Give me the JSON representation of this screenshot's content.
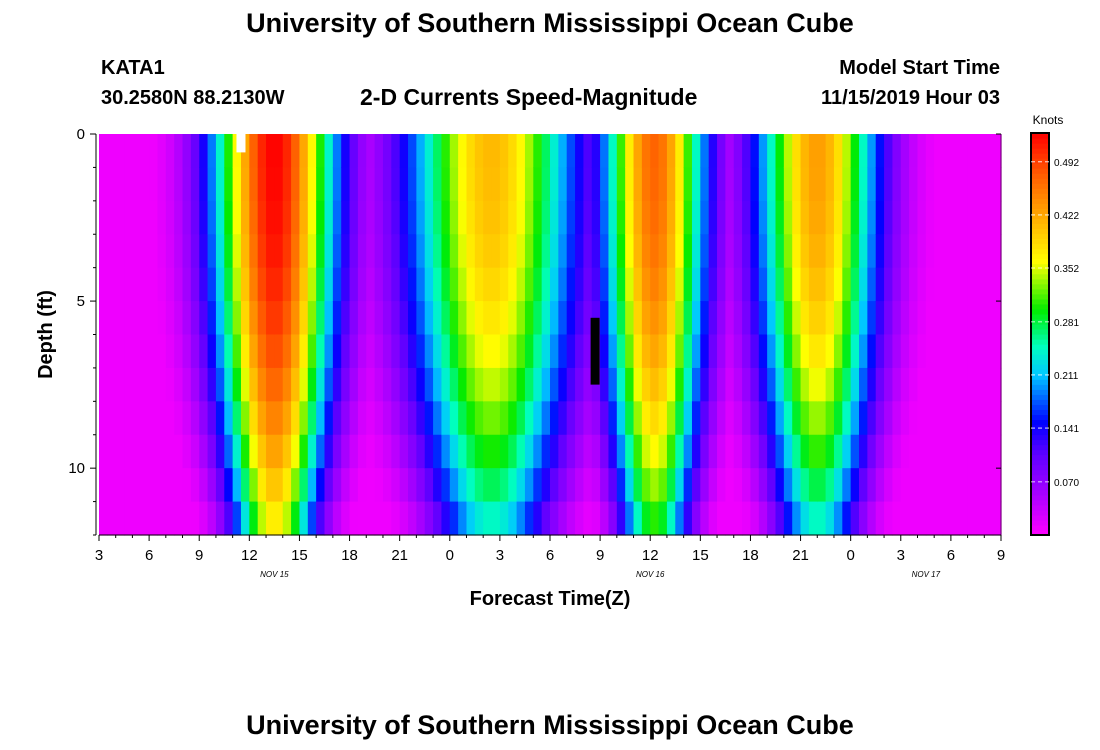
{
  "title": "University of Southern Mississippi Ocean Cube",
  "footer_title": "University of Southern Mississippi Ocean Cube",
  "station": {
    "id": "KATA1",
    "coords": "30.2580N 88.2130W"
  },
  "plot_title": "2-D Currents Speed-Magnitude",
  "model_start": {
    "label": "Model Start Time",
    "value": "11/15/2019 Hour 03"
  },
  "chart_data": {
    "type": "heatmap",
    "title": "2-D Currents Speed-Magnitude",
    "xlabel": "Forecast Time(Z)",
    "ylabel": "Depth (ft)",
    "x_range_hours": [
      0,
      54
    ],
    "y_range_ft": [
      0,
      12
    ],
    "x_ticks": [
      {
        "h": 0,
        "label": "3"
      },
      {
        "h": 3,
        "label": "6"
      },
      {
        "h": 6,
        "label": "9"
      },
      {
        "h": 9,
        "label": "12"
      },
      {
        "h": 12,
        "label": "15"
      },
      {
        "h": 15,
        "label": "18"
      },
      {
        "h": 18,
        "label": "21"
      },
      {
        "h": 21,
        "label": "0"
      },
      {
        "h": 24,
        "label": "3"
      },
      {
        "h": 27,
        "label": "6"
      },
      {
        "h": 30,
        "label": "9"
      },
      {
        "h": 33,
        "label": "12"
      },
      {
        "h": 36,
        "label": "15"
      },
      {
        "h": 39,
        "label": "18"
      },
      {
        "h": 42,
        "label": "21"
      },
      {
        "h": 45,
        "label": "0"
      },
      {
        "h": 48,
        "label": "3"
      },
      {
        "h": 51,
        "label": "6"
      },
      {
        "h": 54,
        "label": "9"
      }
    ],
    "date_labels": [
      {
        "h": 10.5,
        "label": "NOV 15"
      },
      {
        "h": 33,
        "label": "NOV 16"
      },
      {
        "h": 49.5,
        "label": "NOV 17"
      }
    ],
    "y_ticks": [
      0,
      5,
      10
    ],
    "colorbar": {
      "title": "Knots",
      "min": 0.0,
      "max": 0.53,
      "tick_values": [
        0.07,
        0.141,
        0.211,
        0.281,
        0.352,
        0.422,
        0.492
      ],
      "tick_labels": [
        "0.070",
        "0.141",
        "0.211",
        "0.281",
        "0.352",
        "0.422",
        "0.492"
      ]
    },
    "columns_per_hour": 2,
    "depth_levels": 12,
    "peaks": [
      {
        "center_h": 10.5,
        "sigma_h": 2.6,
        "surface": 0.53,
        "bottom": 0.36
      },
      {
        "center_h": 23.5,
        "sigma_h": 3.6,
        "surface": 0.41,
        "bottom": 0.23
      },
      {
        "center_h": 33.25,
        "sigma_h": 2.2,
        "surface": 0.47,
        "bottom": 0.29
      },
      {
        "center_h": 43.0,
        "sigma_h": 2.6,
        "surface": 0.43,
        "bottom": 0.23
      }
    ],
    "markers": [
      {
        "h": 8.5,
        "depth_top": 0.0,
        "depth_bottom": 0.55,
        "color": "#ffffff"
      },
      {
        "h": 29.7,
        "depth_top": 5.5,
        "depth_bottom": 7.5,
        "color": "#000000"
      }
    ]
  }
}
